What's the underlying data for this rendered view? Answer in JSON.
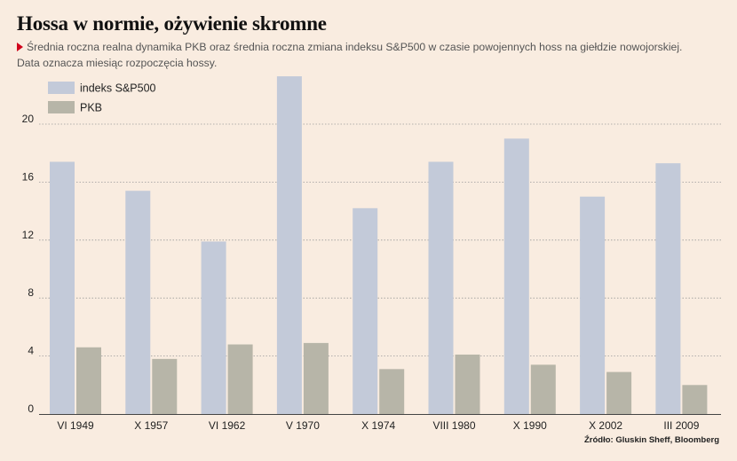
{
  "header": {
    "title": "Hossa w normie, ożywienie skromne",
    "subtitle_line1": "Średnia roczna realna dynamika PKB oraz średnia roczna zmiana indeksu S&P500 w czasie powojennych hoss na giełdzie nowojorskiej.",
    "subtitle_line2": "Data oznacza miesiąc rozpoczęcia hossy."
  },
  "source": "Źródło: Gluskin Sheff, Bloomberg",
  "colors": {
    "background": "#f9ece0",
    "sp500": "#c3cad9",
    "pkb": "#b7b5a8",
    "grid": "#9a9a9a",
    "accent": "#d0021b"
  },
  "chart_data": {
    "type": "bar",
    "categories": [
      "VI 1949",
      "X 1957",
      "VI 1962",
      "V 1970",
      "X 1974",
      "VIII 1980",
      "X 1990",
      "X 2002",
      "III 2009"
    ],
    "series": [
      {
        "name": "indeks S&P500",
        "values": [
          17.4,
          15.4,
          11.9,
          23.3,
          14.2,
          17.4,
          19.0,
          15.0,
          17.3
        ]
      },
      {
        "name": "PKB",
        "values": [
          4.6,
          3.8,
          4.8,
          4.9,
          3.1,
          4.1,
          3.4,
          2.9,
          2.0
        ]
      }
    ],
    "yticks": [
      0,
      4,
      8,
      12,
      16,
      20
    ],
    "ylim": [
      0,
      23.5
    ],
    "grid": true,
    "legend": "top-left"
  }
}
